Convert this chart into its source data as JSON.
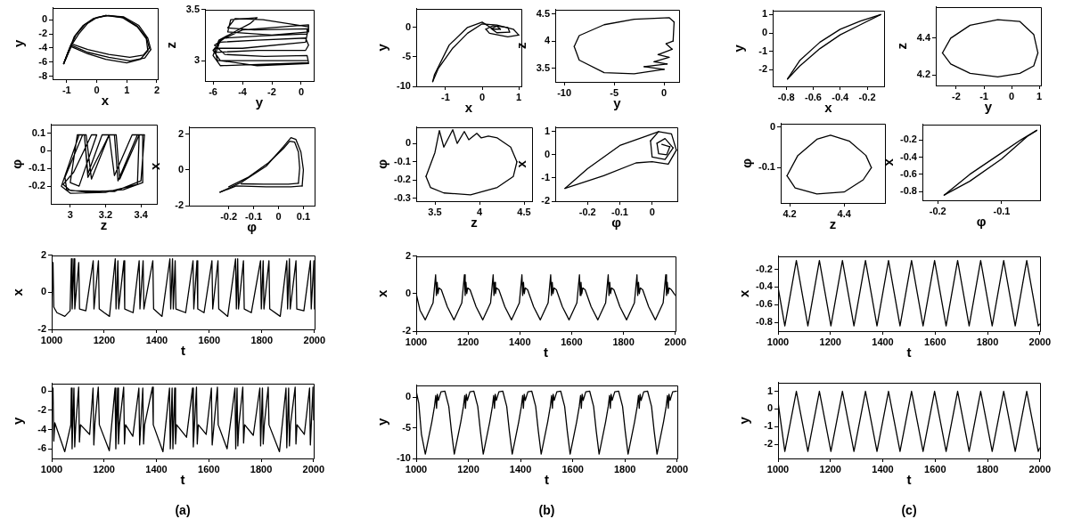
{
  "chart_data": [
    {
      "type": "line",
      "xlabel": "x",
      "ylabel": "y",
      "xlim": [
        -1.47,
        2.03
      ],
      "ylim": [
        -8.4,
        1.7
      ],
      "xticks": [
        -1,
        0,
        1,
        2
      ],
      "yticks": [
        -8,
        -6,
        -4,
        -2,
        0
      ],
      "series": [
        {
          "color": "#000000",
          "x": [
            -1.1,
            -0.9,
            -0.6,
            -0.3,
            0,
            0.4,
            0.9,
            1.35,
            1.65,
            1.75
          ],
          "values": [
            -6.2,
            -4,
            -2,
            -0.5,
            0.3,
            0.6,
            0.3,
            -0.9,
            -2.5,
            -4
          ]
        },
        {
          "color": "#000000",
          "x": [
            1.75,
            1.55,
            1.1,
            0.4,
            -0.3,
            -0.85,
            -1.1
          ],
          "values": [
            -4,
            -5,
            -5.3,
            -4.9,
            -4.2,
            -3.4,
            -6.2
          ]
        },
        {
          "color": "#000000",
          "x": [
            -1.1,
            -0.95,
            -0.7,
            -0.4,
            -0.05,
            0.3,
            0.9,
            1.4,
            1.7,
            1.8
          ],
          "values": [
            -6.2,
            -4.5,
            -2.2,
            -0.7,
            0.2,
            0.6,
            0.4,
            -0.8,
            -2.6,
            -4.2
          ]
        },
        {
          "color": "#000000",
          "x": [
            1.8,
            1.6,
            1.1,
            0.4,
            -0.3,
            -0.85,
            -1.1
          ],
          "values": [
            -4.2,
            -5.4,
            -5.8,
            -5.3,
            -4.6,
            -3.6,
            -6.2
          ]
        },
        {
          "color": "#000000",
          "x": [
            -1.1,
            -1.0,
            -0.75,
            -0.45,
            -0.1,
            0.3,
            0.85,
            1.35,
            1.65,
            1.7
          ],
          "values": [
            -6.2,
            -5.2,
            -2.4,
            -0.8,
            0.2,
            0.6,
            0.3,
            -1,
            -2.7,
            -4.4
          ]
        },
        {
          "color": "#000000",
          "x": [
            1.7,
            1.45,
            1.0,
            0.3,
            -0.3,
            -0.85,
            -1.1
          ],
          "values": [
            -4.4,
            -5.6,
            -6.1,
            -5.6,
            -4.8,
            -3.8,
            -6.2
          ]
        }
      ]
    },
    {
      "type": "line",
      "xlabel": "y",
      "ylabel": "z",
      "xlim": [
        -6.55,
        0.85
      ],
      "ylim": [
        2.8,
        3.5
      ],
      "xticks": [
        -6,
        -4,
        -2,
        0
      ],
      "yticks": [
        3,
        3.5
      ],
      "series": [
        {
          "color": "#000000",
          "x": [
            0.5,
            -3,
            -5.5,
            -6,
            -5.5,
            -3,
            0.3,
            0.5,
            0.3,
            -3,
            -5.8,
            -5.5,
            -4,
            0.5,
            0.5,
            -2,
            -5,
            -4.8,
            -3,
            -3.5,
            -5.6,
            -6,
            -5.5,
            0.5,
            0.4,
            -2.5,
            -5.2,
            -5.9,
            -5.2,
            -2.8,
            0.4,
            0.4,
            -3.2,
            -5,
            -4.5,
            -2.6,
            0.5,
            0.3,
            -4,
            -5.9,
            -5.7,
            0.4
          ],
          "values": [
            2.97,
            2.95,
            3.0,
            3.1,
            3.18,
            3.2,
            3.22,
            3.15,
            3.1,
            3.1,
            3.08,
            3.2,
            3.3,
            3.35,
            3.28,
            3.25,
            3.28,
            3.4,
            3.42,
            3.36,
            3.2,
            3.05,
            2.95,
            2.98,
            3.05,
            3.04,
            3.06,
            3.15,
            3.22,
            3.24,
            3.26,
            3.31,
            3.3,
            3.32,
            3.41,
            3.4,
            3.33,
            3.18,
            3.12,
            3.12,
            3.0,
            3.0
          ]
        }
      ]
    },
    {
      "type": "line",
      "xlabel": "z",
      "ylabel": "φ",
      "xlim": [
        2.89,
        3.49
      ],
      "ylim": [
        -0.3,
        0.15
      ],
      "xticks": [
        3,
        3.2,
        3.4
      ],
      "yticks": [
        -0.2,
        -0.1,
        0,
        0.1
      ],
      "series": [
        {
          "color": "#000000",
          "x": [
            3.07,
            2.97,
            2.98,
            3.1,
            3.3,
            3.41,
            3.41,
            3.38,
            3.27,
            3.25,
            3.22,
            3.1,
            3.08,
            3.05,
            2.95,
            3.0,
            3.2,
            3.38,
            3.39,
            3.35,
            3.25,
            3.22,
            3.18,
            3.1,
            3.08,
            3.04,
            3.0,
            3.05,
            3.15,
            3.12,
            3.02,
            2.96,
            3.0,
            3.25,
            3.4,
            3.42,
            3.39,
            3.28,
            3.26,
            3.22,
            3.12,
            3.09,
            3.06
          ],
          "values": [
            0.09,
            -0.15,
            -0.22,
            -0.235,
            -0.22,
            -0.18,
            0.09,
            0.09,
            -0.17,
            0.09,
            0.09,
            -0.15,
            0.09,
            0.09,
            -0.2,
            -0.24,
            -0.235,
            -0.19,
            0.09,
            0.09,
            -0.14,
            0.09,
            0.09,
            -0.13,
            0.09,
            0.09,
            -0.18,
            -0.2,
            0.09,
            0.09,
            -0.12,
            -0.19,
            -0.225,
            -0.23,
            -0.17,
            0.09,
            0.09,
            -0.16,
            0.09,
            0.09,
            -0.16,
            0.09,
            0.09
          ]
        }
      ]
    },
    {
      "type": "line",
      "xlabel": "φ",
      "ylabel": "x",
      "xlim": [
        -0.36,
        0.145
      ],
      "ylim": [
        -2,
        2.4
      ],
      "xticks": [
        -0.2,
        -0.1,
        0,
        0.1
      ],
      "yticks": [
        -2,
        0,
        2
      ],
      "series": [
        {
          "color": "#000000",
          "x": [
            -0.235,
            -0.15,
            -0.05,
            0.02,
            0.05,
            0.07,
            0.09,
            0.1,
            0.095
          ],
          "values": [
            -1.25,
            -0.7,
            0.2,
            1.3,
            1.8,
            1.7,
            1.0,
            0,
            -0.9
          ]
        },
        {
          "color": "#000000",
          "x": [
            0.095,
            0.05,
            -0.05,
            -0.17,
            -0.235
          ],
          "values": [
            -0.9,
            -0.95,
            -0.95,
            -0.9,
            -1.25
          ]
        },
        {
          "color": "#000000",
          "x": [
            -0.2,
            -0.12,
            -0.04,
            0.02,
            0.045,
            0.065,
            0.08,
            0.085,
            0.08
          ],
          "values": [
            -0.95,
            -0.4,
            0.4,
            1.2,
            1.6,
            1.55,
            1.0,
            0.1,
            -0.75
          ]
        },
        {
          "color": "#000000",
          "x": [
            0.08,
            0.04,
            -0.06,
            -0.15
          ],
          "values": [
            -0.75,
            -0.8,
            -0.8,
            -0.78
          ]
        }
      ]
    },
    {
      "type": "line",
      "xlabel": "t",
      "ylabel": "x",
      "xlim": [
        1000,
        2000
      ],
      "ylim": [
        -2,
        2
      ],
      "xticks": [
        1000,
        1200,
        1400,
        1600,
        1800,
        2000
      ],
      "yticks": [
        -2,
        0,
        2
      ],
      "series": [
        {
          "color": "#000000",
          "x": [
            1000,
            1005,
            1008,
            1020,
            1050,
            1070,
            1075,
            1078,
            1085,
            1088,
            1103,
            1106,
            1130,
            1158,
            1161,
            1178,
            1181,
            1200,
            1220,
            1242,
            1245,
            1252,
            1255,
            1275,
            1278,
            1310,
            1333,
            1336,
            1348,
            1351,
            1385,
            1388,
            1420,
            1450,
            1453,
            1460,
            1463,
            1470,
            1473,
            1510,
            1538,
            1541,
            1553,
            1556,
            1580,
            1610,
            1613,
            1633,
            1636,
            1670,
            1700,
            1703,
            1708,
            1711,
            1730,
            1733,
            1760,
            1795,
            1798,
            1805,
            1808,
            1827,
            1830,
            1870,
            1895,
            1898,
            1905,
            1908,
            1930,
            1933,
            1960,
            1985,
            1988,
            1998,
            2000
          ],
          "values": [
            -0.9,
            1.6,
            -0.8,
            -1.1,
            -1.3,
            -1.0,
            1.8,
            -0.9,
            1.8,
            -0.9,
            1.6,
            -0.9,
            -1.0,
            1.7,
            -0.9,
            1.7,
            -0.9,
            -1.1,
            -1.3,
            1.8,
            -0.9,
            1.7,
            -0.9,
            1.7,
            -0.9,
            -1.1,
            1.7,
            -0.9,
            1.7,
            -0.9,
            1.7,
            -0.9,
            -1.3,
            1.8,
            -0.9,
            1.8,
            -0.9,
            1.7,
            -0.9,
            -1.1,
            1.7,
            -0.9,
            1.7,
            -0.9,
            -1.1,
            1.7,
            -0.9,
            1.7,
            -0.9,
            -1.3,
            1.8,
            -0.9,
            1.8,
            -0.9,
            1.7,
            -0.9,
            -1.1,
            1.7,
            -0.9,
            1.7,
            -0.9,
            1.7,
            -0.9,
            -1.3,
            1.7,
            -0.9,
            1.8,
            -0.9,
            1.7,
            -0.9,
            -1.0,
            1.7,
            -0.9,
            1.7,
            -0.9
          ]
        }
      ]
    },
    {
      "type": "line",
      "xlabel": "t",
      "ylabel": "y",
      "xlim": [
        1000,
        2000
      ],
      "ylim": [
        -7,
        0.8
      ],
      "xticks": [
        1000,
        1200,
        1400,
        1600,
        1800,
        2000
      ],
      "yticks": [
        -6,
        -4,
        -2,
        0
      ],
      "annotations": [
        "(a)"
      ],
      "series": [
        {
          "color": "#000000",
          "x": [
            1000,
            1005,
            1008,
            1012,
            1050,
            1073,
            1075,
            1078,
            1085,
            1088,
            1092,
            1103,
            1106,
            1110,
            1145,
            1158,
            1161,
            1165,
            1178,
            1182,
            1220,
            1242,
            1245,
            1252,
            1255,
            1259,
            1275,
            1278,
            1282,
            1310,
            1333,
            1336,
            1348,
            1351,
            1355,
            1385,
            1388,
            1425,
            1450,
            1453,
            1460,
            1463,
            1470,
            1473,
            1477,
            1515,
            1538,
            1541,
            1553,
            1556,
            1560,
            1590,
            1610,
            1613,
            1633,
            1636,
            1670,
            1700,
            1703,
            1708,
            1711,
            1715,
            1730,
            1733,
            1737,
            1770,
            1795,
            1798,
            1805,
            1808,
            1812,
            1827,
            1830,
            1870,
            1895,
            1898,
            1905,
            1908,
            1912,
            1930,
            1933,
            1937,
            1965,
            1985,
            1988,
            1998,
            2000
          ],
          "values": [
            -2,
            0.3,
            -5.2,
            -3.3,
            -6.3,
            -3.5,
            0.3,
            -6,
            0.3,
            -5.8,
            -3.5,
            0.4,
            -5.3,
            -3.5,
            -4.5,
            0.3,
            -5.6,
            -3.4,
            0.4,
            -3.5,
            -6.2,
            0.3,
            -6,
            0.3,
            -5.5,
            -3.5,
            0.4,
            -5.5,
            -3.5,
            -4.7,
            0.3,
            -5.6,
            0.3,
            -5.5,
            -3.5,
            0.4,
            -3.5,
            -6.3,
            0.3,
            -6,
            0.3,
            -6,
            0.3,
            -5.5,
            -3.5,
            -4.8,
            0.3,
            -5.8,
            0.4,
            -5.5,
            -3.5,
            -4.5,
            0.3,
            -5.6,
            0.4,
            -3.5,
            -6,
            0.3,
            -6,
            0.3,
            -5.7,
            -3.5,
            0.4,
            -5.4,
            -3.5,
            -4.6,
            0.3,
            -5.7,
            0.3,
            -5.5,
            -3.5,
            0.4,
            -3.5,
            -6.3,
            0.3,
            -5.9,
            0.3,
            -5.7,
            -3.5,
            0.4,
            -5.5,
            -3.5,
            -4.5,
            0.3,
            -5.6,
            0.4,
            -3
          ]
        }
      ]
    },
    {
      "type": "line",
      "xlabel": "x",
      "ylabel": "y",
      "xlim": [
        -1.8,
        1.07
      ],
      "ylim": [
        -10,
        3.2
      ],
      "xticks": [
        -1,
        0,
        1
      ],
      "yticks": [
        -10,
        -5,
        0
      ],
      "series": [
        {
          "color": "#000000",
          "x": [
            -1.35,
            -1.2,
            -0.8,
            -0.4,
            0,
            0.4,
            0.85,
            1.0
          ],
          "values": [
            -9.2,
            -7,
            -3.5,
            -1,
            0.6,
            0.4,
            -0.3,
            -1.3
          ]
        },
        {
          "color": "#000000",
          "x": [
            1.0,
            0.7,
            0.2,
            0.1
          ],
          "values": [
            -1.3,
            -1.6,
            -1.0,
            -0.3
          ]
        },
        {
          "color": "#000000",
          "x": [
            0.1,
            0.3,
            0.7,
            0.75
          ],
          "values": [
            -0.3,
            0.3,
            0,
            -0.8
          ]
        },
        {
          "color": "#000000",
          "x": [
            0.75,
            0.4,
            0.25
          ],
          "values": [
            -0.8,
            -0.9,
            -0.2
          ]
        },
        {
          "color": "#000000",
          "x": [
            0.25,
            0.4,
            0.5
          ],
          "values": [
            -0.2,
            0.2,
            -0.3
          ]
        },
        {
          "color": "#000000",
          "x": [
            0.5,
            0.3,
            0,
            -0.4,
            -0.9,
            -1.3,
            -1.35
          ],
          "values": [
            -0.3,
            -0.3,
            0.9,
            0,
            -3,
            -8,
            -9.2
          ]
        }
      ]
    },
    {
      "type": "line",
      "xlabel": "y",
      "ylabel": "z",
      "xlim": [
        -10.9,
        1.5
      ],
      "ylim": [
        3.25,
        4.58
      ],
      "xticks": [
        -10,
        -5,
        0
      ],
      "yticks": [
        3.5,
        4,
        4.5
      ],
      "series": [
        {
          "color": "#000000",
          "x": [
            -9,
            -8.5,
            -6,
            -3,
            0.5,
            1
          ],
          "values": [
            3.9,
            4.1,
            4.3,
            4.4,
            4.43,
            4.35
          ]
        },
        {
          "color": "#000000",
          "x": [
            1,
            0.9
          ],
          "values": [
            4.35,
            4.0
          ]
        },
        {
          "color": "#000000",
          "x": [
            0.9,
            0.2
          ],
          "values": [
            4.0,
            3.95
          ]
        },
        {
          "color": "#000000",
          "x": [
            0.2,
            0.8
          ],
          "values": [
            3.95,
            3.85
          ]
        },
        {
          "color": "#000000",
          "x": [
            0.8,
            -0.6
          ],
          "values": [
            3.85,
            3.75
          ]
        },
        {
          "color": "#000000",
          "x": [
            -0.6,
            0.5
          ],
          "values": [
            3.75,
            3.7
          ]
        },
        {
          "color": "#000000",
          "x": [
            0.5,
            -1
          ],
          "values": [
            3.7,
            3.62
          ]
        },
        {
          "color": "#000000",
          "x": [
            -1,
            0.3
          ],
          "values": [
            3.62,
            3.58
          ]
        },
        {
          "color": "#000000",
          "x": [
            0.3,
            -2
          ],
          "values": [
            3.58,
            3.53
          ]
        },
        {
          "color": "#000000",
          "x": [
            -2,
            0
          ],
          "values": [
            3.53,
            3.48
          ]
        },
        {
          "color": "#000000",
          "x": [
            0,
            -3,
            -6,
            -8.5,
            -9
          ],
          "values": [
            3.48,
            3.4,
            3.42,
            3.65,
            3.9
          ]
        }
      ]
    },
    {
      "type": "line",
      "xlabel": "z",
      "ylabel": "φ",
      "xlim": [
        3.29,
        4.59
      ],
      "ylim": [
        -0.315,
        0.09
      ],
      "xticks": [
        3.5,
        4,
        4.5
      ],
      "yticks": [
        -0.3,
        -0.2,
        -0.1,
        0
      ],
      "series": [
        {
          "color": "#000000",
          "x": [
            3.4,
            3.5,
            3.55,
            3.6,
            3.7,
            3.75,
            3.83,
            3.88,
            3.97,
            4.02,
            4.1,
            4.2,
            4.35,
            4.42
          ],
          "values": [
            -0.18,
            -0.05,
            0.07,
            -0.02,
            0.075,
            0,
            0.065,
            0.02,
            0.055,
            0.03,
            0.04,
            0.03,
            -0.02,
            -0.1
          ]
        },
        {
          "color": "#000000",
          "x": [
            4.42,
            4.38,
            4.2,
            3.9,
            3.6,
            3.45,
            3.4
          ],
          "values": [
            -0.1,
            -0.18,
            -0.24,
            -0.28,
            -0.27,
            -0.24,
            -0.18
          ]
        }
      ]
    },
    {
      "type": "line",
      "xlabel": "φ",
      "ylabel": "x",
      "xlim": [
        -0.3,
        0.078
      ],
      "ylim": [
        -2,
        1.2
      ],
      "xticks": [
        -0.2,
        -0.1,
        0
      ],
      "yticks": [
        -2,
        -1,
        0,
        1
      ],
      "series": [
        {
          "color": "#000000",
          "x": [
            -0.27,
            -0.15,
            -0.05,
            0,
            0.05,
            0.075
          ],
          "values": [
            -1.45,
            -0.9,
            -0.35,
            -0.3,
            -0.4,
            0.2
          ]
        },
        {
          "color": "#000000",
          "x": [
            0.075,
            0.06,
            0.02,
            -0.005
          ],
          "values": [
            0.2,
            0.9,
            1.0,
            0.6
          ]
        },
        {
          "color": "#000000",
          "x": [
            -0.005,
            0,
            0.04,
            0.065
          ],
          "values": [
            0.6,
            -0.1,
            -0.2,
            0.3
          ]
        },
        {
          "color": "#000000",
          "x": [
            0.065,
            0.04,
            0.015
          ],
          "values": [
            0.3,
            0.7,
            0.5
          ]
        },
        {
          "color": "#000000",
          "x": [
            0.015,
            0.02,
            0.045,
            0.055
          ],
          "values": [
            0.5,
            0.05,
            0,
            0.35
          ]
        },
        {
          "color": "#000000",
          "x": [
            0.055,
            0.03
          ],
          "values": [
            0.35,
            0.45
          ]
        },
        {
          "color": "#000000",
          "x": [
            0.02,
            -0.02,
            -0.1,
            -0.2,
            -0.27
          ],
          "values": [
            1.0,
            0.8,
            0.4,
            -0.6,
            -1.45
          ]
        }
      ]
    },
    {
      "type": "line",
      "xlabel": "t",
      "ylabel": "x",
      "xlim": [
        1000,
        2000
      ],
      "ylim": [
        -2,
        2
      ],
      "xticks": [
        1000,
        1200,
        1400,
        1600,
        1800,
        2000
      ],
      "yticks": [
        -2,
        0,
        2
      ],
      "series": [
        {
          "color": "#000000",
          "x": [
            1000,
            1015,
            1035,
            1065,
            1075,
            1078,
            1081,
            1084,
            1088,
            1097,
            1120,
            1146,
            1176,
            1186,
            1189,
            1192,
            1195,
            1199,
            1208,
            1231,
            1257,
            1287,
            1297,
            1300,
            1303,
            1306,
            1310,
            1319,
            1342,
            1368,
            1398,
            1408,
            1411,
            1414,
            1417,
            1421,
            1430,
            1453,
            1479,
            1509,
            1519,
            1522,
            1525,
            1528,
            1532,
            1541,
            1564,
            1590,
            1620,
            1630,
            1633,
            1636,
            1639,
            1643,
            1652,
            1675,
            1701,
            1731,
            1741,
            1744,
            1747,
            1750,
            1754,
            1763,
            1786,
            1812,
            1842,
            1852,
            1855,
            1858,
            1861,
            1865,
            1874,
            1897,
            1923,
            1953,
            1963,
            1966,
            1969,
            1972,
            1976,
            1985,
            2000
          ],
          "values": [
            0.0,
            -0.9,
            -1.4,
            -0.5,
            1.0,
            -0.1,
            0.6,
            0.0,
            0.3,
            0.2,
            -0.7,
            -1.4,
            -0.5,
            1.0,
            -0.1,
            0.6,
            0.0,
            0.3,
            0.2,
            -0.7,
            -1.4,
            -0.5,
            1.0,
            -0.1,
            0.6,
            0.0,
            0.3,
            0.2,
            -0.7,
            -1.4,
            -0.5,
            1.0,
            -0.1,
            0.6,
            0.0,
            0.3,
            0.2,
            -0.7,
            -1.4,
            -0.5,
            1.0,
            -0.1,
            0.6,
            0.0,
            0.3,
            0.2,
            -0.7,
            -1.4,
            -0.5,
            1.0,
            -0.1,
            0.6,
            0.0,
            0.3,
            0.2,
            -0.7,
            -1.4,
            -0.5,
            1.0,
            -0.1,
            0.6,
            0.0,
            0.3,
            0.2,
            -0.7,
            -1.4,
            -0.5,
            1.0,
            -0.1,
            0.6,
            0.0,
            0.3,
            0.2,
            -0.7,
            -1.4,
            -0.5,
            1.0,
            -0.1,
            0.6,
            0.0,
            0.3,
            0.2,
            -0.1
          ]
        }
      ]
    },
    {
      "type": "line",
      "xlabel": "t",
      "ylabel": "y",
      "xlim": [
        1000,
        2000
      ],
      "ylim": [
        -10,
        2
      ],
      "xticks": [
        1000,
        1200,
        1400,
        1600,
        1800,
        2000
      ],
      "yticks": [
        -10,
        -5,
        0
      ],
      "annotations": [
        "(b)"
      ],
      "series": [
        {
          "color": "#000000",
          "x": [
            1000,
            1010,
            1020,
            1035,
            1060,
            1070,
            1075,
            1078,
            1081,
            1085,
            1095,
            1110,
            1125,
            1135,
            1146,
            1171,
            1181,
            1186,
            1189,
            1192,
            1196,
            1206,
            1221,
            1236,
            1246,
            1257,
            1282,
            1292,
            1297,
            1300,
            1303,
            1307,
            1317,
            1332,
            1347,
            1357,
            1368,
            1393,
            1403,
            1408,
            1411,
            1414,
            1418,
            1428,
            1443,
            1458,
            1468,
            1479,
            1504,
            1514,
            1519,
            1522,
            1525,
            1529,
            1539,
            1554,
            1569,
            1579,
            1590,
            1615,
            1625,
            1630,
            1633,
            1636,
            1640,
            1650,
            1665,
            1680,
            1690,
            1701,
            1726,
            1736,
            1741,
            1744,
            1747,
            1751,
            1761,
            1776,
            1791,
            1801,
            1812,
            1837,
            1847,
            1852,
            1855,
            1858,
            1862,
            1872,
            1887,
            1902,
            1912,
            1923,
            1948,
            1958,
            1963,
            1966,
            1969,
            1973,
            1983,
            1998
          ],
          "values": [
            1.0,
            -1.0,
            -6.0,
            -9.3,
            -4,
            -1.5,
            0.3,
            -1.8,
            0.5,
            -0.5,
            0.9,
            1.0,
            -1.5,
            -5.5,
            -9.3,
            -4,
            -1.5,
            0.3,
            -1.8,
            0.5,
            -0.5,
            0.9,
            1.0,
            -1.5,
            -5.5,
            -9.3,
            -4,
            -1.5,
            0.3,
            -1.8,
            0.5,
            -0.5,
            0.9,
            1.0,
            -1.5,
            -5.5,
            -9.3,
            -4,
            -1.5,
            0.3,
            -1.8,
            0.5,
            -0.5,
            0.9,
            1.0,
            -1.5,
            -5.5,
            -9.3,
            -4,
            -1.5,
            0.3,
            -1.8,
            0.5,
            -0.5,
            0.9,
            1.0,
            -1.5,
            -5.5,
            -9.3,
            -4,
            -1.5,
            0.3,
            -1.8,
            0.5,
            -0.5,
            0.9,
            1.0,
            -1.5,
            -5.5,
            -9.3,
            -4,
            -1.5,
            0.3,
            -1.8,
            0.5,
            -0.5,
            0.9,
            1.0,
            -1.5,
            -5.5,
            -9.3,
            -4,
            -1.5,
            0.3,
            -1.8,
            0.5,
            -0.5,
            0.9,
            1.0,
            -1.5,
            -5.5,
            -9.3,
            -4,
            -1.5,
            0.3,
            -1.8,
            0.5,
            -0.5,
            0.9,
            1.0
          ]
        }
      ]
    },
    {
      "type": "line",
      "xlabel": "x",
      "ylabel": "y",
      "xlim": [
        -0.9,
        -0.075
      ],
      "ylim": [
        -2.9,
        1.23
      ],
      "xticks": [
        -0.8,
        -0.6,
        -0.4,
        -0.2
      ],
      "yticks": [
        -2,
        -1,
        0,
        1
      ],
      "series": [
        {
          "color": "#000000",
          "x": [
            -0.79,
            -0.7,
            -0.55,
            -0.4,
            -0.25,
            -0.1
          ],
          "values": [
            -2.5,
            -1.5,
            -0.5,
            0.2,
            0.65,
            1.0
          ]
        },
        {
          "color": "#000000",
          "x": [
            -0.1,
            -0.25,
            -0.4,
            -0.55,
            -0.7,
            -0.79
          ],
          "values": [
            1.0,
            0.45,
            -0.1,
            -0.85,
            -1.8,
            -2.5
          ]
        }
      ]
    },
    {
      "type": "line",
      "xlabel": "y",
      "ylabel": "z",
      "xlim": [
        -2.74,
        1.06
      ],
      "ylim": [
        4.144,
        4.57
      ],
      "xticks": [
        -2,
        -1,
        0,
        1
      ],
      "yticks": [
        4.2,
        4.4
      ],
      "series": [
        {
          "color": "#000000",
          "x": [
            -2.5,
            -2.2,
            -1.5,
            -0.5,
            0.3,
            0.8,
            0.95
          ],
          "values": [
            4.32,
            4.4,
            4.47,
            4.5,
            4.49,
            4.42,
            4.32
          ]
        },
        {
          "color": "#000000",
          "x": [
            0.95,
            0.8,
            0.3,
            -0.5,
            -1.5,
            -2.2,
            -2.5
          ],
          "values": [
            4.32,
            4.25,
            4.21,
            4.19,
            4.21,
            4.26,
            4.32
          ]
        }
      ]
    },
    {
      "type": "line",
      "xlabel": "z",
      "ylabel": "φ",
      "xlim": [
        4.167,
        4.55
      ],
      "ylim": [
        -0.187,
        0.009
      ],
      "xticks": [
        4.2,
        4.4
      ],
      "yticks": [
        -0.1,
        0
      ],
      "series": [
        {
          "color": "#000000",
          "x": [
            4.19,
            4.23,
            4.3,
            4.35,
            4.42,
            4.48,
            4.5
          ],
          "values": [
            -0.12,
            -0.07,
            -0.03,
            -0.02,
            -0.035,
            -0.07,
            -0.1
          ]
        },
        {
          "color": "#000000",
          "x": [
            4.5,
            4.47,
            4.4,
            4.3,
            4.22,
            4.19
          ],
          "values": [
            -0.1,
            -0.13,
            -0.16,
            -0.165,
            -0.15,
            -0.12
          ]
        }
      ]
    },
    {
      "type": "line",
      "xlabel": "φ",
      "ylabel": "x",
      "xlim": [
        -0.224,
        -0.04
      ],
      "ylim": [
        -0.9,
        -0.02
      ],
      "xticks": [
        -0.2,
        -0.1
      ],
      "yticks": [
        -0.8,
        -0.6,
        -0.4,
        -0.2
      ],
      "series": [
        {
          "color": "#000000",
          "x": [
            -0.19,
            -0.15,
            -0.1,
            -0.07,
            -0.045
          ],
          "values": [
            -0.84,
            -0.6,
            -0.35,
            -0.2,
            -0.09
          ]
        },
        {
          "color": "#000000",
          "x": [
            -0.045,
            -0.06,
            -0.1,
            -0.15,
            -0.19
          ],
          "values": [
            -0.09,
            -0.16,
            -0.42,
            -0.68,
            -0.84
          ]
        }
      ]
    },
    {
      "type": "line",
      "xlabel": "t",
      "ylabel": "x",
      "xlim": [
        1000,
        2000
      ],
      "ylim": [
        -0.9,
        -0.05
      ],
      "xticks": [
        1000,
        1200,
        1400,
        1600,
        1800,
        2000
      ],
      "yticks": [
        -0.8,
        -0.6,
        -0.4,
        -0.2
      ],
      "series": [
        {
          "color": "#000000",
          "x": [
            1000,
            1026,
            1048,
            1070,
            1092,
            1114,
            1136,
            1158,
            1180,
            1202,
            1224,
            1246,
            1268,
            1290,
            1312,
            1334,
            1356,
            1378,
            1400,
            1422,
            1444,
            1466,
            1488,
            1510,
            1532,
            1554,
            1576,
            1598,
            1620,
            1642,
            1664,
            1686,
            1708,
            1730,
            1752,
            1774,
            1796,
            1818,
            1840,
            1862,
            1884,
            1906,
            1928,
            1950,
            1972,
            1994,
            2000
          ],
          "values": [
            -0.4,
            -0.84,
            -0.47,
            -0.1,
            -0.47,
            -0.84,
            -0.47,
            -0.1,
            -0.47,
            -0.84,
            -0.47,
            -0.1,
            -0.47,
            -0.84,
            -0.47,
            -0.1,
            -0.47,
            -0.84,
            -0.47,
            -0.1,
            -0.47,
            -0.84,
            -0.47,
            -0.1,
            -0.47,
            -0.84,
            -0.47,
            -0.1,
            -0.47,
            -0.84,
            -0.47,
            -0.1,
            -0.47,
            -0.84,
            -0.47,
            -0.1,
            -0.47,
            -0.84,
            -0.47,
            -0.1,
            -0.47,
            -0.84,
            -0.47,
            -0.1,
            -0.47,
            -0.84,
            -0.82
          ]
        }
      ]
    },
    {
      "type": "line",
      "xlabel": "t",
      "ylabel": "y",
      "xlim": [
        1000,
        2000
      ],
      "ylim": [
        -2.8,
        1.5
      ],
      "xticks": [
        1000,
        1200,
        1400,
        1600,
        1800,
        2000
      ],
      "yticks": [
        -2,
        -1,
        0,
        1
      ],
      "annotations": [
        "(c)"
      ],
      "series": [
        {
          "color": "#000000",
          "x": [
            1000,
            1026,
            1048,
            1070,
            1092,
            1114,
            1136,
            1158,
            1180,
            1202,
            1224,
            1246,
            1268,
            1290,
            1312,
            1334,
            1356,
            1378,
            1400,
            1422,
            1444,
            1466,
            1488,
            1510,
            1532,
            1554,
            1576,
            1598,
            1620,
            1642,
            1664,
            1686,
            1708,
            1730,
            1752,
            1774,
            1796,
            1818,
            1840,
            1862,
            1884,
            1906,
            1928,
            1950,
            1972,
            1994,
            2000
          ],
          "values": [
            0.4,
            -2.4,
            -0.7,
            1.0,
            -0.7,
            -2.4,
            -0.7,
            1.0,
            -0.7,
            -2.4,
            -0.7,
            1.0,
            -0.7,
            -2.4,
            -0.7,
            1.0,
            -0.7,
            -2.4,
            -0.7,
            1.0,
            -0.7,
            -2.4,
            -0.7,
            1.0,
            -0.7,
            -2.4,
            -0.7,
            1.0,
            -0.7,
            -2.4,
            -0.7,
            1.0,
            -0.7,
            -2.4,
            -0.7,
            1.0,
            -0.7,
            -2.4,
            -0.7,
            1.0,
            -0.7,
            -2.4,
            -0.7,
            1.0,
            -0.7,
            -2.4,
            -2.2
          ]
        }
      ]
    }
  ]
}
